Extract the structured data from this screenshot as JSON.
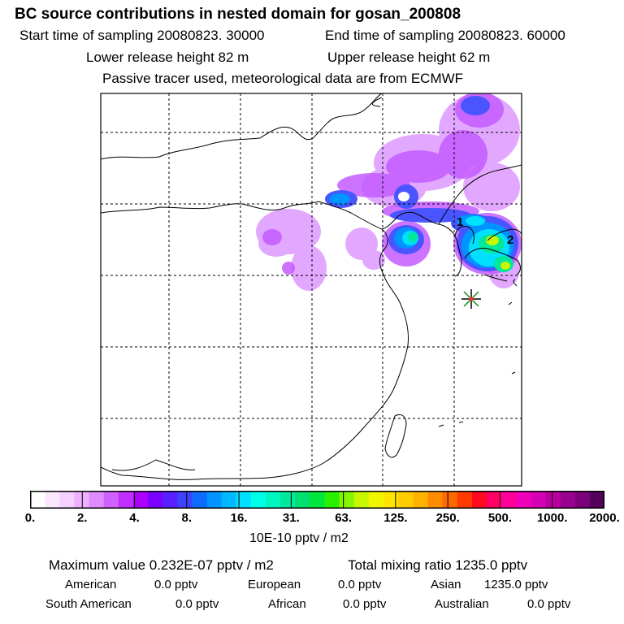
{
  "header": {
    "title": "BC  source contributions in nested domain for gosan_200808",
    "start_time": "Start time of sampling 20080823. 30000",
    "end_time": "End time of sampling 20080823. 60000",
    "lower_release": "Lower release height   82 m",
    "upper_release": "Upper release height   62 m",
    "tracer_note": "Passive tracer used, meteorological data are from ECMWF"
  },
  "map": {
    "labels": [
      "1",
      "2"
    ],
    "receptor_marker": "star-icon"
  },
  "colorbar": {
    "colors": [
      "#ffffff",
      "#fbe7ff",
      "#f6d0ff",
      "#ecb2ff",
      "#df8cff",
      "#d061ff",
      "#bf2fff",
      "#ab00ff",
      "#7a00ff",
      "#5a1fff",
      "#3d42ff",
      "#0f6bff",
      "#0094ff",
      "#00b8ff",
      "#00e0ff",
      "#00ffe8",
      "#00f5c0",
      "#00e89a",
      "#00e070",
      "#00e63c",
      "#29ef00",
      "#86f500",
      "#c7f800",
      "#f2f500",
      "#ffe500",
      "#ffcc00",
      "#ffb200",
      "#ff8c00",
      "#ff6a00",
      "#ff3b00",
      "#ff0a20",
      "#ff0066",
      "#ff0098",
      "#f000b8",
      "#d600b5",
      "#b8009e",
      "#9a0090",
      "#7c007a",
      "#55005a"
    ],
    "ticks": [
      "0.",
      "2.",
      "4.",
      "8.",
      "16.",
      "31.",
      "63.",
      "125.",
      "250.",
      "500.",
      "1000.",
      "2000."
    ],
    "units": "10E-10 pptv / m2"
  },
  "summary": {
    "max_value": "Maximum value  0.232E-07 pptv / m2",
    "total_mixing": "Total mixing ratio     1235.0 pptv",
    "regions": [
      {
        "name": "American",
        "value": "0.0 pptv"
      },
      {
        "name": "European",
        "value": "0.0 pptv"
      },
      {
        "name": "Asian",
        "value": "1235.0 pptv"
      },
      {
        "name": "South American",
        "value": "0.0 pptv"
      },
      {
        "name": "African",
        "value": "0.0 pptv"
      },
      {
        "name": "Australian",
        "value": "0.0 pptv"
      }
    ]
  }
}
